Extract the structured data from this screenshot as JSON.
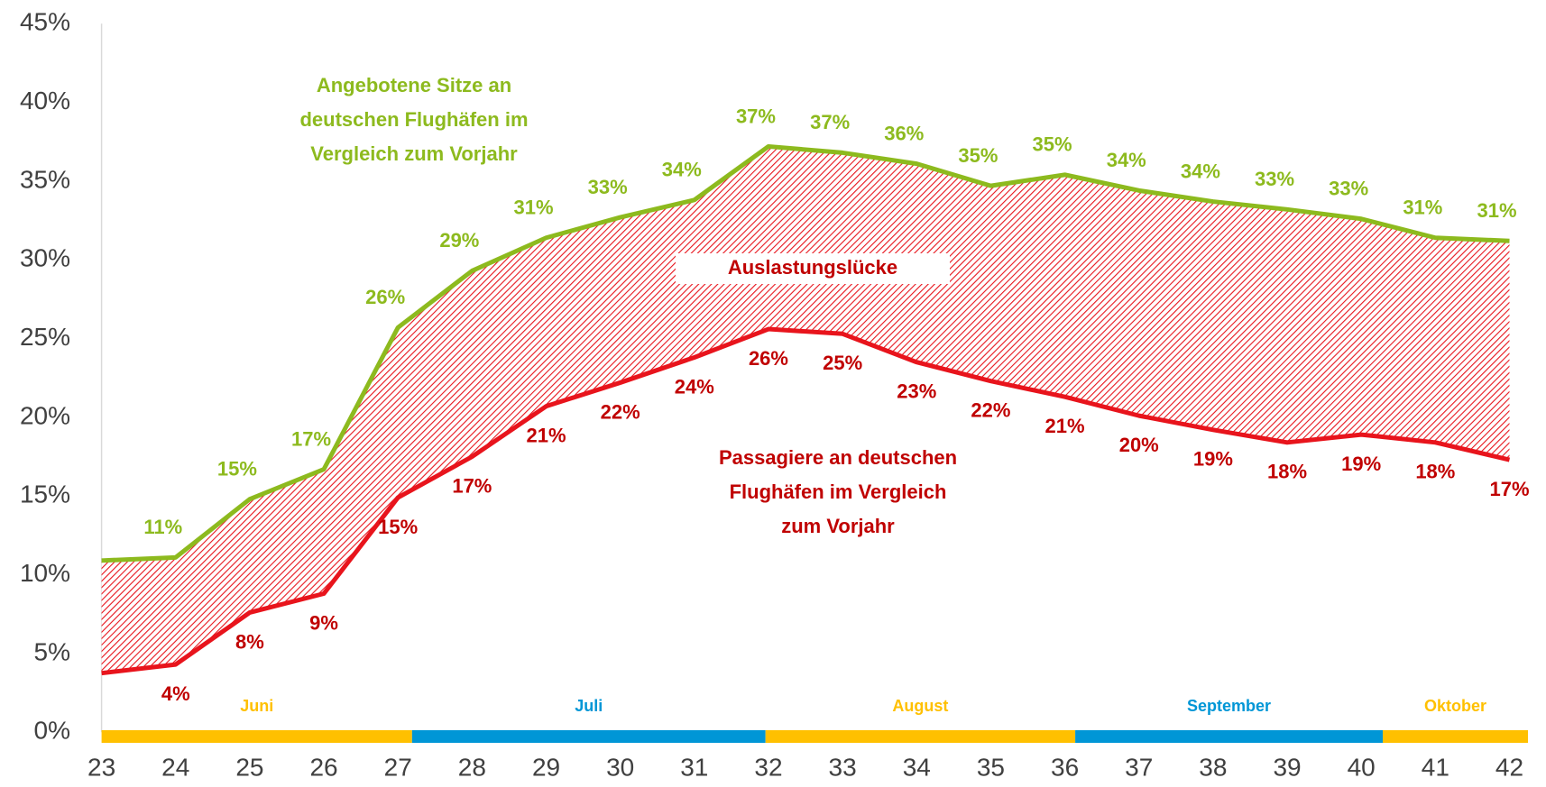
{
  "chart_data": {
    "type": "line",
    "x": [
      23,
      24,
      25,
      26,
      27,
      28,
      29,
      30,
      31,
      32,
      33,
      34,
      35,
      36,
      37,
      38,
      39,
      40,
      41,
      42
    ],
    "xlim": [
      23,
      42.25
    ],
    "xticks": [
      23,
      24,
      25,
      26,
      27,
      28,
      29,
      30,
      31,
      32,
      33,
      34,
      35,
      36,
      37,
      38,
      39,
      40,
      41,
      42
    ],
    "ylim": [
      0,
      45
    ],
    "yticks": [
      {
        "value": 0,
        "label": "0%"
      },
      {
        "value": 5,
        "label": "5%"
      },
      {
        "value": 10,
        "label": "10%"
      },
      {
        "value": 15,
        "label": "15%"
      },
      {
        "value": 20,
        "label": "20%"
      },
      {
        "value": 25,
        "label": "25%"
      },
      {
        "value": 30,
        "label": "30%"
      },
      {
        "value": 35,
        "label": "35%"
      },
      {
        "value": 40,
        "label": "40%"
      },
      {
        "value": 45,
        "label": "45%"
      }
    ],
    "series": [
      {
        "name": [
          "Angebotene Sitze an",
          "deutschen Flughäfen im",
          "Vergleich zum Vorjahr"
        ],
        "color": "#8dba1e",
        "values": [
          10.9,
          11.1,
          14.8,
          16.7,
          25.7,
          29.3,
          31.4,
          32.7,
          33.8,
          37.2,
          36.8,
          36.1,
          34.7,
          35.4,
          34.4,
          33.7,
          33.2,
          32.6,
          31.4,
          31.2
        ],
        "value_labels": [
          null,
          "11%",
          "15%",
          "17%",
          "26%",
          "29%",
          "31%",
          "33%",
          "34%",
          "37%",
          "37%",
          "36%",
          "35%",
          "35%",
          "34%",
          "34%",
          "33%",
          "33%",
          "31%",
          "31%"
        ]
      },
      {
        "name": [
          "Passagiere an deutschen",
          "Flughäfen im Vergleich",
          "zum Vorjahr"
        ],
        "color": "#e8141c",
        "label_color": "#c00000",
        "values": [
          3.75,
          4.3,
          7.6,
          8.8,
          14.9,
          17.5,
          20.7,
          22.2,
          23.8,
          25.6,
          25.3,
          23.5,
          22.3,
          21.3,
          20.1,
          19.2,
          18.4,
          18.9,
          18.4,
          17.3
        ],
        "value_labels": [
          null,
          "4%",
          "8%",
          "9%",
          "15%",
          "17%",
          "21%",
          "22%",
          "24%",
          "26%",
          "25%",
          "23%",
          "22%",
          "21%",
          "20%",
          "19%",
          "18%",
          "19%",
          "18%",
          "17%"
        ]
      }
    ],
    "gap_label": "Auslastungslücke",
    "months": [
      {
        "name": "Juni",
        "color": "#ffc000",
        "start": 23,
        "end": 27.19
      },
      {
        "name": "Juli",
        "color": "#0096d6",
        "start": 27.19,
        "end": 31.96
      },
      {
        "name": "August",
        "color": "#ffc000",
        "start": 31.96,
        "end": 36.14
      },
      {
        "name": "September",
        "color": "#0096d6",
        "start": 36.14,
        "end": 40.29
      },
      {
        "name": "Oktober",
        "color": "#ffc000",
        "start": 40.29,
        "end": 42.25
      }
    ]
  }
}
